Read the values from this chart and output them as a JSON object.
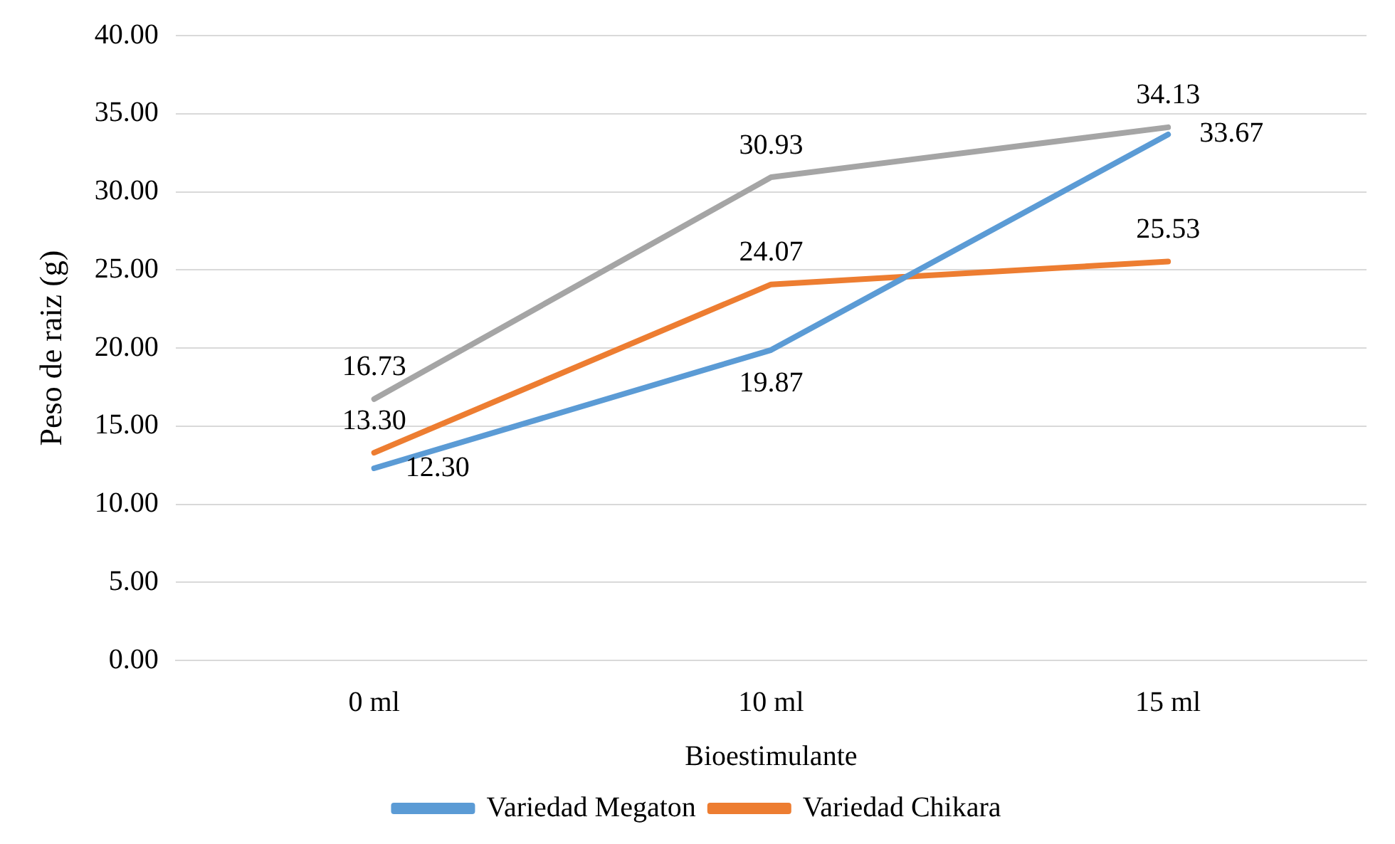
{
  "chart_data": {
    "type": "line",
    "xlabel": "Bioestimulante",
    "ylabel": "Peso de raiz (g)",
    "categories": [
      "0 ml",
      "10 ml",
      "15 ml"
    ],
    "series": [
      {
        "name": "Variedad Megaton",
        "color": "#5b9bd5",
        "values": [
          12.3,
          19.87,
          33.67
        ],
        "value_labels": [
          "12.30",
          "19.87",
          "33.67"
        ]
      },
      {
        "name": "Variedad Chikara",
        "color": "#ed7d31",
        "values": [
          13.3,
          24.07,
          25.53
        ],
        "value_labels": [
          "13.30",
          "24.07",
          "25.53"
        ]
      },
      {
        "color": "#a5a5a5",
        "values": [
          16.73,
          30.93,
          34.13
        ],
        "value_labels": [
          "16.73",
          "30.93",
          "34.13"
        ]
      }
    ],
    "ylim": [
      0,
      40
    ],
    "yticks": [
      {
        "value": 0,
        "label": "0.00"
      },
      {
        "value": 5,
        "label": "5.00"
      },
      {
        "value": 10,
        "label": "10.00"
      },
      {
        "value": 15,
        "label": "15.00"
      },
      {
        "value": 20,
        "label": "20.00"
      },
      {
        "value": 25,
        "label": "25.00"
      },
      {
        "value": 30,
        "label": "30.00"
      },
      {
        "value": 35,
        "label": "35.00"
      },
      {
        "value": 40,
        "label": "40.00"
      }
    ],
    "grid": "y",
    "legend": "bottom",
    "marker": "none",
    "line_style": "solid"
  }
}
